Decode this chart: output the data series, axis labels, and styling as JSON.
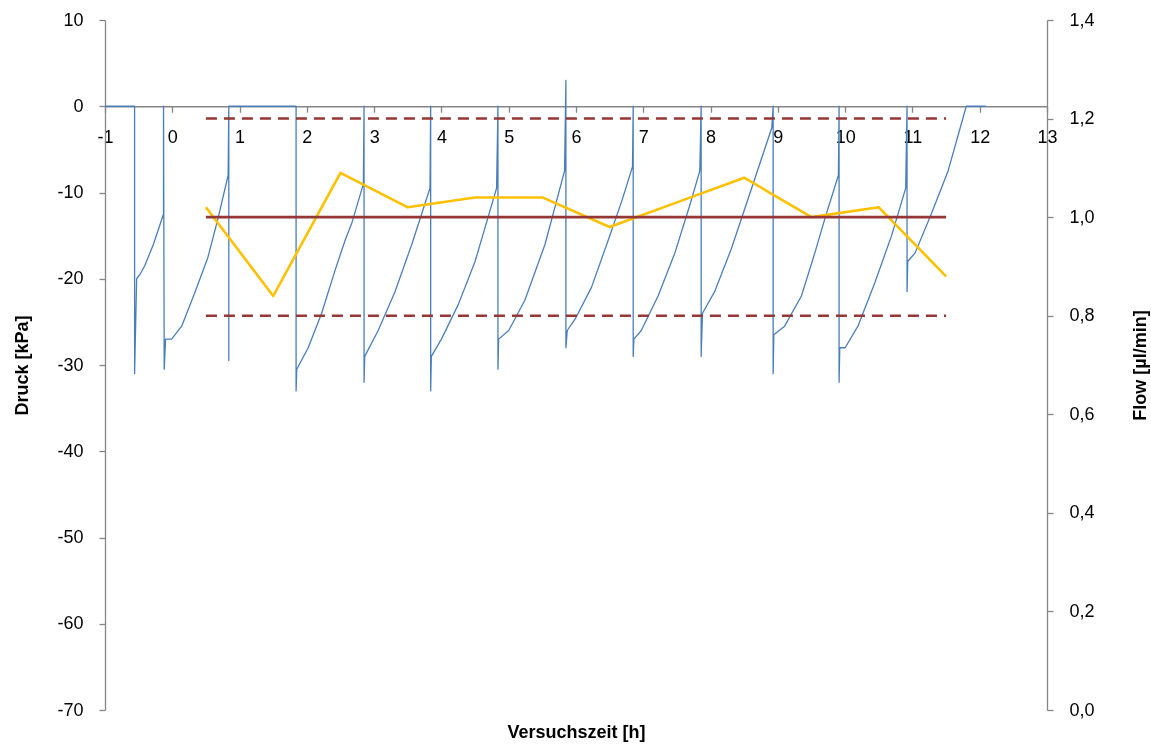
{
  "chart_data": {
    "type": "line",
    "xlabel": "Versuchszeit [h]",
    "ylabel": "Druck [kPa]",
    "y2label": "Flow [µl/min]",
    "xlim": [
      -1,
      13
    ],
    "xticks": [
      -1,
      0,
      1,
      2,
      3,
      4,
      5,
      6,
      7,
      8,
      9,
      10,
      11,
      12,
      13
    ],
    "ylim": [
      -70,
      10
    ],
    "yticks": [
      -70,
      -60,
      -50,
      -40,
      -30,
      -20,
      -10,
      0,
      10
    ],
    "y2lim": [
      0,
      1.4
    ],
    "y2ticks": [
      {
        "value": 0,
        "label": "0,0"
      },
      {
        "value": 0.2,
        "label": "0,2"
      },
      {
        "value": 0.4,
        "label": "0,4"
      },
      {
        "value": 0.6,
        "label": "0,6"
      },
      {
        "value": 0.8,
        "label": "0,8"
      },
      {
        "value": 1.0,
        "label": "1,0"
      },
      {
        "value": 1.2,
        "label": "1,2"
      },
      {
        "value": 1.4,
        "label": "1,4"
      }
    ],
    "series": [
      {
        "color": "#4a7ebb",
        "x": [
          -1,
          -0.56,
          -0.56,
          -0.53,
          -0.48,
          -0.41,
          -0.28,
          -0.13,
          -0.13,
          -0.12,
          -0.1,
          -0.01,
          0.14,
          0.34,
          0.53,
          0.68,
          0.83,
          0.84,
          0.84,
          0.84,
          1.84,
          1.84,
          1.85,
          2.02,
          2.22,
          2.42,
          2.57,
          2.67,
          2.84,
          2.85,
          2.85,
          2.86,
          3.06,
          3.31,
          3.56,
          3.83,
          3.84,
          3.84,
          3.85,
          4.0,
          4.25,
          4.5,
          4.82,
          4.84,
          4.84,
          4.85,
          5.0,
          5.24,
          5.54,
          5.83,
          5.85,
          5.85,
          5.87,
          6.0,
          6.23,
          6.48,
          6.68,
          6.84,
          6.85,
          6.85,
          6.86,
          6.97,
          7.22,
          7.47,
          7.69,
          7.84,
          7.86,
          7.86,
          7.88,
          8.06,
          8.31,
          8.61,
          8.91,
          8.93,
          8.93,
          8.94,
          9.1,
          9.35,
          9.55,
          9.7,
          9.9,
          9.91,
          9.91,
          9.92,
          10.0,
          10.19,
          10.44,
          10.69,
          10.9,
          10.92,
          10.92,
          10.93,
          11.04,
          11.28,
          11.53,
          11.8,
          12.09
        ],
        "values": [
          0,
          0,
          -31,
          -20,
          -19.5,
          -18.5,
          -16,
          -12.5,
          0,
          -30.5,
          -27,
          -27,
          -25.5,
          -21.5,
          -17.5,
          -13,
          -8,
          0,
          -29.5,
          0,
          0,
          -33,
          -30.5,
          -28,
          -24,
          -19,
          -15.5,
          -13.5,
          -9,
          0,
          -32,
          -29,
          -26,
          -21.5,
          -16,
          -9.5,
          0,
          -33,
          -29,
          -27,
          -23,
          -18,
          -9.5,
          0,
          -30.5,
          -27,
          -26,
          -22.5,
          -16,
          -7.5,
          3,
          -28,
          -26,
          -24.5,
          -21,
          -15.5,
          -11,
          -7,
          0,
          -29,
          -27,
          -26,
          -22,
          -17,
          -11.5,
          -7.5,
          0,
          -29,
          -24,
          -21.5,
          -16.5,
          -9.5,
          -2.5,
          0,
          -31,
          -26.5,
          -25.5,
          -22,
          -17,
          -13,
          -8,
          0,
          -32,
          -28,
          -28,
          -25.5,
          -20.5,
          -15,
          -9.5,
          0,
          -21.5,
          -18,
          -17,
          -12.5,
          -7.5,
          0,
          0
        ]
      },
      {
        "color": "#ffc000",
        "axis": "y2",
        "x": [
          0.5,
          1.5,
          2.5,
          3.5,
          4.5,
          5.5,
          6.5,
          7.5,
          8.5,
          9.5,
          10.5,
          11.5
        ],
        "values": [
          1.02,
          0.84,
          1.09,
          1.02,
          1.04,
          1.04,
          0.98,
          1.03,
          1.08,
          1.0,
          1.02,
          0.88
        ]
      },
      {
        "color": "#953735",
        "axis": "y2",
        "x": [
          0.5,
          11.5
        ],
        "values": [
          1.0,
          1.0
        ]
      },
      {
        "color": "#953735",
        "axis": "y2",
        "line_style": "dashed",
        "x": [
          0.5,
          11.5
        ],
        "values": [
          1.2,
          1.2
        ]
      },
      {
        "color": "#953735",
        "axis": "y2",
        "line_style": "dashed",
        "x": [
          0.5,
          11.5
        ],
        "values": [
          0.8,
          0.8
        ]
      }
    ]
  }
}
